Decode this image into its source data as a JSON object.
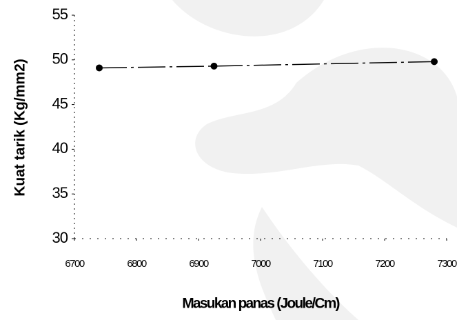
{
  "chart_data": {
    "type": "line",
    "x_label": "Masukan panas (Joule/Cm)",
    "y_label": "Kuat tarik (Kg/mm2)",
    "x": [
      6740,
      6925,
      7280
    ],
    "values": [
      49.1,
      49.3,
      49.8
    ],
    "color": "#000000",
    "xlim": [
      6700,
      7300
    ],
    "xticks": [
      6700,
      6800,
      6900,
      7000,
      7100,
      7200,
      7300
    ],
    "ylim": [
      30,
      55
    ],
    "yticks": [
      30,
      35,
      40,
      45,
      50,
      55
    ]
  }
}
